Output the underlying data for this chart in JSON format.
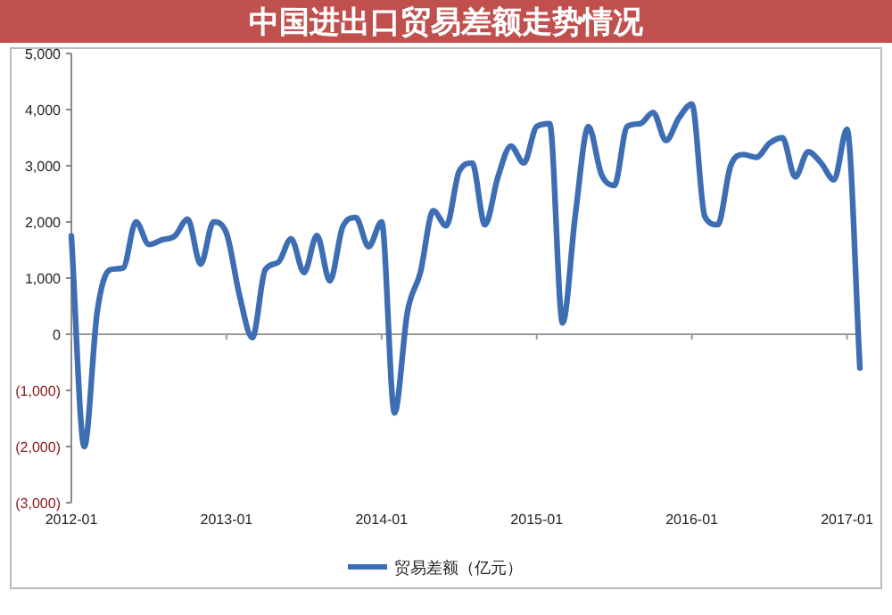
{
  "chart_data": {
    "type": "line",
    "title": "中国进出口贸易差额走势情况",
    "x": [
      "2012-01",
      "2012-02",
      "2012-03",
      "2012-04",
      "2012-05",
      "2012-06",
      "2012-07",
      "2012-08",
      "2012-09",
      "2012-10",
      "2012-11",
      "2012-12",
      "2013-01",
      "2013-02",
      "2013-03",
      "2013-04",
      "2013-05",
      "2013-06",
      "2013-07",
      "2013-08",
      "2013-09",
      "2013-10",
      "2013-11",
      "2013-12",
      "2014-01",
      "2014-02",
      "2014-03",
      "2014-04",
      "2014-05",
      "2014-06",
      "2014-07",
      "2014-08",
      "2014-09",
      "2014-10",
      "2014-11",
      "2014-12",
      "2015-01",
      "2015-02",
      "2015-03",
      "2015-04",
      "2015-05",
      "2015-06",
      "2015-07",
      "2015-08",
      "2015-09",
      "2015-10",
      "2015-11",
      "2015-12",
      "2016-01",
      "2016-02",
      "2016-03",
      "2016-04",
      "2016-05",
      "2016-06",
      "2016-07",
      "2016-08",
      "2016-09",
      "2016-10",
      "2016-11",
      "2016-12",
      "2017-01",
      "2017-02"
    ],
    "series": [
      {
        "name": "贸易差额（亿元）",
        "color": "#3d6eb4",
        "values": [
          1750,
          -2000,
          400,
          1150,
          1180,
          2000,
          1600,
          1680,
          1750,
          2050,
          1250,
          2000,
          1800,
          700,
          -60,
          1150,
          1280,
          1700,
          1100,
          1760,
          950,
          1920,
          2080,
          1560,
          2000,
          -1400,
          400,
          1100,
          2200,
          1930,
          2900,
          3050,
          1950,
          2800,
          3350,
          3050,
          3700,
          3750,
          200,
          2150,
          3700,
          2850,
          2650,
          3700,
          3750,
          3950,
          3450,
          3850,
          4100,
          2100,
          1950,
          3000,
          3200,
          3150,
          3400,
          3500,
          2800,
          3250,
          3050,
          2750,
          3650,
          -600
        ]
      }
    ],
    "xlim": [
      "2012-01",
      "2017-02"
    ],
    "xticks": [
      "2012-01",
      "2013-01",
      "2014-01",
      "2015-01",
      "2016-01",
      "2017-01"
    ],
    "ylim": [
      -3000,
      5000
    ],
    "yticks": [
      {
        "value": -3000,
        "label": "(3,000)"
      },
      {
        "value": -2000,
        "label": "(2,000)"
      },
      {
        "value": -1000,
        "label": "(1,000)"
      },
      0,
      {
        "value": 1000,
        "label": "1,000"
      },
      {
        "value": 2000,
        "label": "2,000"
      },
      {
        "value": 3000,
        "label": "3,000"
      },
      {
        "value": 4000,
        "label": "4,000"
      },
      {
        "value": 5000,
        "label": "5,000"
      }
    ],
    "legend": "bottom",
    "line_style": "solid"
  }
}
